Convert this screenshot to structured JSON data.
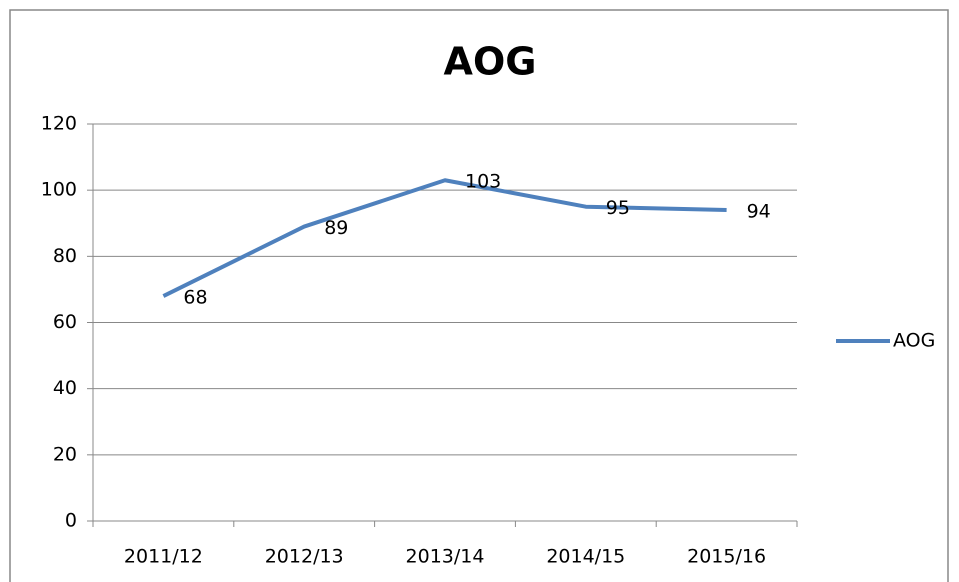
{
  "chart_data": {
    "type": "line",
    "title": "AOG",
    "categories": [
      "2011/12",
      "2012/13",
      "2013/14",
      "2014/15",
      "2015/16"
    ],
    "series": [
      {
        "name": "AOG",
        "color": "#4f81bd",
        "values": [
          68,
          89,
          103,
          95,
          94
        ]
      }
    ],
    "ylim": [
      0,
      120
    ],
    "yticks": [
      0,
      20,
      40,
      60,
      80,
      100,
      120
    ],
    "grid": true,
    "legend": "right"
  }
}
